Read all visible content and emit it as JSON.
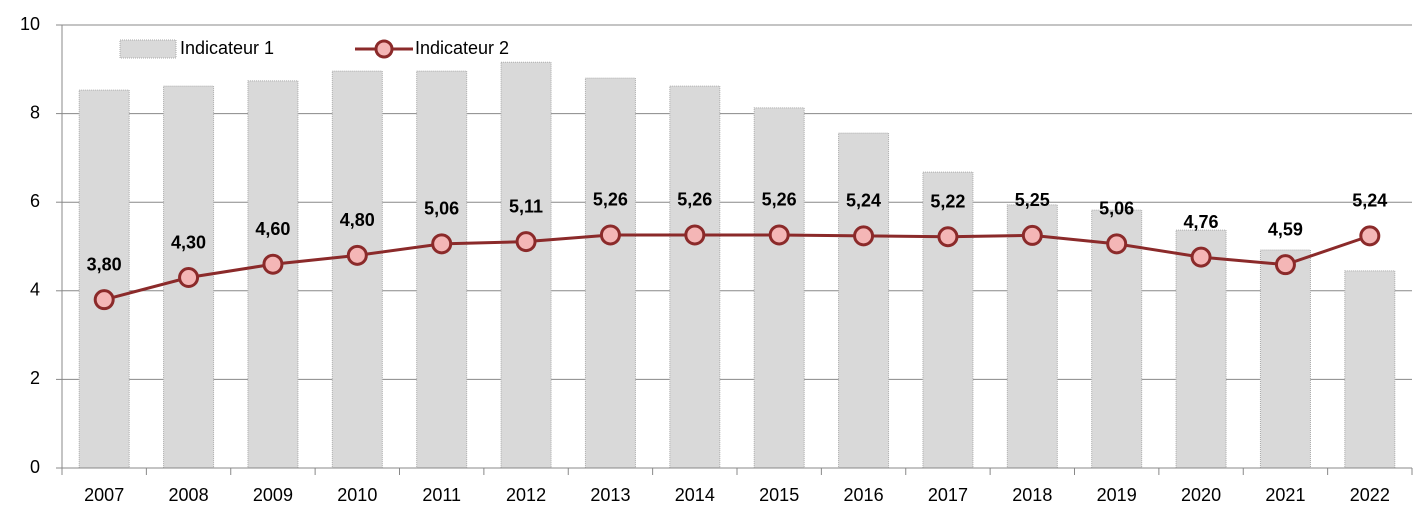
{
  "chart_data": {
    "type": "combo",
    "categories": [
      "2007",
      "2008",
      "2009",
      "2010",
      "2011",
      "2012",
      "2013",
      "2014",
      "2015",
      "2016",
      "2017",
      "2018",
      "2019",
      "2020",
      "2021",
      "2022"
    ],
    "series": [
      {
        "name": "Indicateur 1",
        "type": "bar",
        "color": "#d9d9d9",
        "values": [
          8.53,
          8.62,
          8.74,
          8.96,
          8.96,
          9.16,
          8.8,
          8.62,
          8.13,
          7.56,
          6.68,
          5.94,
          5.82,
          5.37,
          4.92,
          4.45
        ]
      },
      {
        "name": "Indicateur 2",
        "type": "line",
        "color": "#8b2a2a",
        "marker_color": "#f4b6b6",
        "values": [
          3.8,
          4.3,
          4.6,
          4.8,
          5.06,
          5.11,
          5.26,
          5.26,
          5.26,
          5.24,
          5.22,
          5.25,
          5.06,
          4.76,
          4.59,
          5.24
        ],
        "value_labels": [
          "3,80",
          "4,30",
          "4,60",
          "4,80",
          "5,06",
          "5,11",
          "5,26",
          "5,26",
          "5,26",
          "5,24",
          "5,22",
          "5,25",
          "5,06",
          "4,76",
          "4,59",
          "5,24"
        ]
      }
    ],
    "ylim": [
      0,
      10
    ],
    "yticks": [
      0,
      2,
      4,
      6,
      8,
      10
    ],
    "grid": true,
    "legend": "top-left"
  }
}
